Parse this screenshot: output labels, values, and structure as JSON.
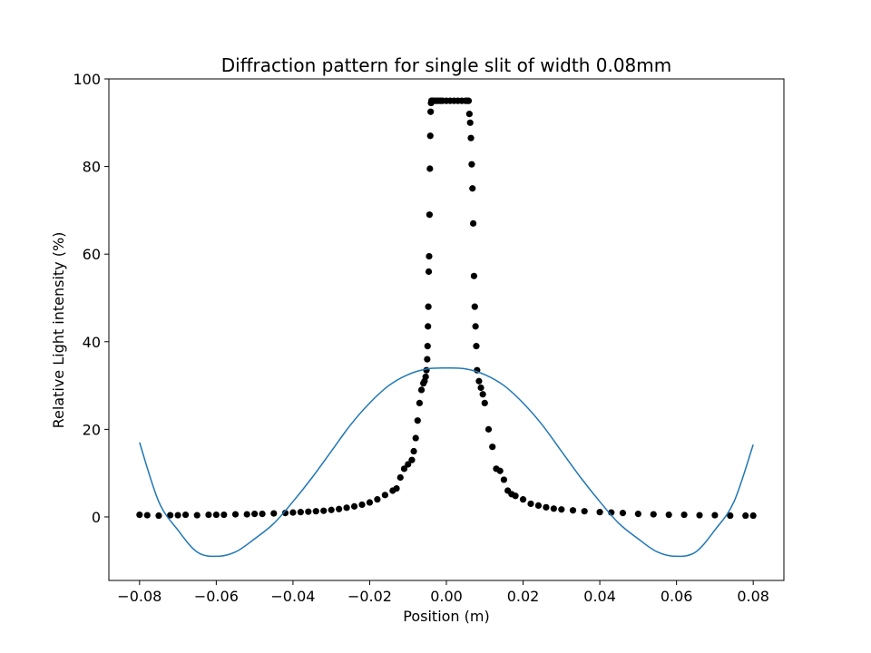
{
  "chart_data": {
    "type": "scatter",
    "title": "Diffraction pattern for single slit of width 0.08mm",
    "xlabel": "Position (m)",
    "ylabel": "Relative Light intensity (%)",
    "xlim": [
      -0.088,
      0.088
    ],
    "ylim": [
      -14.5,
      100
    ],
    "x_ticks": [
      -0.08,
      -0.06,
      -0.04,
      -0.02,
      0.0,
      0.02,
      0.04,
      0.06,
      0.08
    ],
    "x_tick_labels": [
      "−0.08",
      "−0.06",
      "−0.04",
      "−0.02",
      "0.00",
      "0.02",
      "0.04",
      "0.06",
      "0.08"
    ],
    "y_ticks": [
      0,
      20,
      40,
      60,
      80,
      100
    ],
    "y_tick_labels": [
      "0",
      "20",
      "40",
      "60",
      "80",
      "100"
    ],
    "grid": false,
    "legend": "none",
    "series": [
      {
        "kind": "scatter",
        "color": "#000000",
        "x": [
          -0.08,
          -0.078,
          -0.075,
          -0.072,
          -0.07,
          -0.068,
          -0.065,
          -0.062,
          -0.06,
          -0.058,
          -0.055,
          -0.052,
          -0.05,
          -0.048,
          -0.045,
          -0.042,
          -0.04,
          -0.038,
          -0.036,
          -0.034,
          -0.032,
          -0.03,
          -0.028,
          -0.026,
          -0.024,
          -0.022,
          -0.02,
          -0.018,
          -0.016,
          -0.014,
          -0.013,
          -0.012,
          -0.011,
          -0.01,
          -0.009,
          -0.0085,
          -0.008,
          -0.0075,
          -0.007,
          -0.0065,
          -0.006,
          -0.0057,
          -0.0054,
          -0.0052,
          -0.005,
          -0.0049,
          -0.0048,
          -0.0047,
          -0.0046,
          -0.0045,
          -0.0044,
          -0.0043,
          -0.0042,
          -0.0041,
          -0.004,
          -0.0039,
          -0.0038,
          -0.0035,
          -0.003,
          -0.0025,
          -0.002,
          -0.0015,
          -0.001,
          0.0,
          0.001,
          0.002,
          0.003,
          0.004,
          0.005,
          0.0055,
          0.0058,
          0.006,
          0.0062,
          0.0064,
          0.0066,
          0.0068,
          0.007,
          0.0072,
          0.0074,
          0.0076,
          0.0078,
          0.008,
          0.0085,
          0.009,
          0.0095,
          0.01,
          0.011,
          0.012,
          0.013,
          0.014,
          0.015,
          0.016,
          0.017,
          0.018,
          0.02,
          0.022,
          0.024,
          0.026,
          0.028,
          0.03,
          0.033,
          0.036,
          0.04,
          0.043,
          0.046,
          0.05,
          0.054,
          0.058,
          0.062,
          0.066,
          0.07,
          0.074,
          0.078,
          0.08
        ],
        "y": [
          0.5,
          0.4,
          0.3,
          0.4,
          0.4,
          0.5,
          0.4,
          0.5,
          0.5,
          0.5,
          0.6,
          0.6,
          0.7,
          0.7,
          0.8,
          0.9,
          1.0,
          1.1,
          1.2,
          1.3,
          1.4,
          1.6,
          1.8,
          2.1,
          2.4,
          2.8,
          3.3,
          4.0,
          5.0,
          6.0,
          6.5,
          9.0,
          11.0,
          12.0,
          13.0,
          15.0,
          18.0,
          22.0,
          26.0,
          29.0,
          30.5,
          31.0,
          32.0,
          33.5,
          36.0,
          39.0,
          43.5,
          48.0,
          56.0,
          59.5,
          69.0,
          79.5,
          87.0,
          92.5,
          94.5,
          95.0,
          95.0,
          95.0,
          95.0,
          95.0,
          95.0,
          95.0,
          95.0,
          95.0,
          95.0,
          95.0,
          95.0,
          95.0,
          95.0,
          95.0,
          95.0,
          92.0,
          90.0,
          86.5,
          80.5,
          75.0,
          67.0,
          55.0,
          48.0,
          43.5,
          39.0,
          33.5,
          31.0,
          29.5,
          28.0,
          26.0,
          20.0,
          16.0,
          11.0,
          10.5,
          8.5,
          6.0,
          5.2,
          4.8,
          4.0,
          3.0,
          2.6,
          2.2,
          1.9,
          1.7,
          1.5,
          1.3,
          1.1,
          1.0,
          0.9,
          0.7,
          0.6,
          0.5,
          0.5,
          0.4,
          0.4,
          0.3,
          0.3,
          0.3
        ]
      },
      {
        "kind": "line",
        "color": "#1f77b4",
        "x": [
          -0.08,
          -0.075,
          -0.07,
          -0.065,
          -0.06,
          -0.055,
          -0.05,
          -0.045,
          -0.04,
          -0.035,
          -0.03,
          -0.025,
          -0.02,
          -0.015,
          -0.01,
          -0.005,
          0.0,
          0.005,
          0.01,
          0.015,
          0.02,
          0.025,
          0.03,
          0.035,
          0.04,
          0.045,
          0.05,
          0.055,
          0.06,
          0.065,
          0.07,
          0.075,
          0.08
        ],
        "y": [
          17.0,
          3.5,
          -3.0,
          -8.0,
          -9.0,
          -8.0,
          -5.0,
          -1.5,
          3.5,
          9.0,
          15.0,
          21.0,
          26.0,
          30.0,
          32.5,
          33.8,
          34.0,
          33.8,
          32.5,
          30.0,
          26.0,
          21.0,
          15.0,
          9.0,
          3.5,
          -1.5,
          -5.0,
          -8.0,
          -9.0,
          -8.0,
          -3.0,
          3.5,
          16.5
        ]
      }
    ]
  }
}
